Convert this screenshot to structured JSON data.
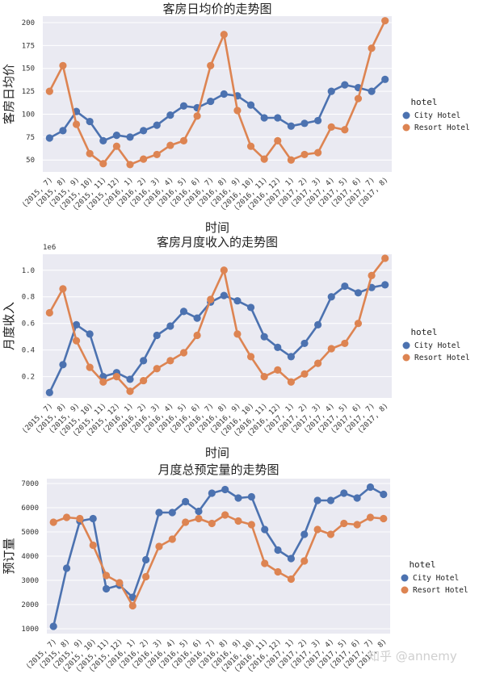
{
  "watermark": "知乎 @annemy",
  "chart_data": [
    {
      "type": "line",
      "title": "客房日均价的走势图",
      "xlabel": "时间",
      "ylabel": "客房日均价",
      "multiplier": "",
      "legend_title": "hotel",
      "legend_position": "right",
      "grid": true,
      "ylim": [
        37,
        207
      ],
      "yticks": [
        50,
        75,
        100,
        125,
        150,
        175,
        200
      ],
      "categories": [
        "(2015, 7)",
        "(2015, 8)",
        "(2015, 9)",
        "(2015, 10)",
        "(2015, 11)",
        "(2015, 12)",
        "(2016, 1)",
        "(2016, 2)",
        "(2016, 3)",
        "(2016, 4)",
        "(2016, 5)",
        "(2016, 6)",
        "(2016, 7)",
        "(2016, 8)",
        "(2016, 9)",
        "(2016, 10)",
        "(2016, 11)",
        "(2016, 12)",
        "(2017, 1)",
        "(2017, 2)",
        "(2017, 3)",
        "(2017, 4)",
        "(2017, 5)",
        "(2017, 6)",
        "(2017, 7)",
        "(2017, 8)"
      ],
      "series": [
        {
          "name": "City Hotel",
          "color": "#4c72b0",
          "values": [
            74,
            82,
            103,
            92,
            71,
            77,
            75,
            82,
            88,
            99,
            109,
            107,
            114,
            122,
            120,
            110,
            96,
            96,
            87,
            90,
            93,
            125,
            132,
            129,
            125,
            138
          ]
        },
        {
          "name": "Resort Hotel",
          "color": "#dd8452",
          "values": [
            125,
            153,
            89,
            57,
            46,
            65,
            45,
            51,
            56,
            66,
            71,
            98,
            153,
            187,
            104,
            65,
            51,
            71,
            50,
            56,
            58,
            86,
            83,
            117,
            172,
            202
          ]
        }
      ]
    },
    {
      "type": "line",
      "title": "客房月度收入的走势图",
      "xlabel": "时间",
      "ylabel": "月度收入",
      "multiplier": "1e6",
      "legend_title": "hotel",
      "legend_position": "right",
      "grid": true,
      "ylim": [
        0.04,
        1.12
      ],
      "yticks": [
        0.2,
        0.4,
        0.6,
        0.8,
        1.0
      ],
      "categories": [
        "(2015, 7)",
        "(2015, 8)",
        "(2015, 9)",
        "(2015, 10)",
        "(2015, 11)",
        "(2015, 12)",
        "(2016, 1)",
        "(2016, 2)",
        "(2016, 3)",
        "(2016, 4)",
        "(2016, 5)",
        "(2016, 6)",
        "(2016, 7)",
        "(2016, 8)",
        "(2016, 9)",
        "(2016, 10)",
        "(2016, 11)",
        "(2016, 12)",
        "(2017, 1)",
        "(2017, 2)",
        "(2017, 3)",
        "(2017, 4)",
        "(2017, 5)",
        "(2017, 6)",
        "(2017, 7)",
        "(2017, 8)"
      ],
      "series": [
        {
          "name": "City Hotel",
          "color": "#4c72b0",
          "values": [
            0.08,
            0.29,
            0.59,
            0.52,
            0.2,
            0.23,
            0.18,
            0.32,
            0.51,
            0.58,
            0.69,
            0.64,
            0.76,
            0.81,
            0.77,
            0.72,
            0.5,
            0.42,
            0.35,
            0.45,
            0.59,
            0.8,
            0.88,
            0.83,
            0.87,
            0.89
          ]
        },
        {
          "name": "Resort Hotel",
          "color": "#dd8452",
          "values": [
            0.68,
            0.86,
            0.47,
            0.27,
            0.16,
            0.2,
            0.09,
            0.17,
            0.26,
            0.32,
            0.38,
            0.51,
            0.78,
            1.0,
            0.52,
            0.35,
            0.2,
            0.25,
            0.16,
            0.22,
            0.3,
            0.41,
            0.45,
            0.6,
            0.96,
            1.09
          ]
        }
      ]
    },
    {
      "type": "line",
      "title": "月度总预定量的走势图",
      "xlabel": "",
      "ylabel": "预订量",
      "multiplier": "",
      "legend_title": "hotel",
      "legend_position": "right",
      "grid": true,
      "ylim": [
        800,
        7200
      ],
      "yticks": [
        1000,
        2000,
        3000,
        4000,
        5000,
        6000,
        7000
      ],
      "categories": [
        "(2015, 7)",
        "(2015, 8)",
        "(2015, 9)",
        "(2015, 10)",
        "(2015, 11)",
        "(2015, 12)",
        "(2016, 1)",
        "(2016, 2)",
        "(2016, 3)",
        "(2016, 4)",
        "(2016, 5)",
        "(2016, 6)",
        "(2016, 7)",
        "(2016, 8)",
        "(2016, 9)",
        "(2016, 10)",
        "(2016, 11)",
        "(2016, 12)",
        "(2017, 1)",
        "(2017, 2)",
        "(2017, 3)",
        "(2017, 4)",
        "(2017, 5)",
        "(2017, 6)",
        "(2017, 7)",
        "(2017, 8)"
      ],
      "series": [
        {
          "name": "City Hotel",
          "color": "#4c72b0",
          "values": [
            1100,
            3500,
            5450,
            5550,
            2650,
            2800,
            2300,
            3850,
            5800,
            5800,
            6250,
            5850,
            6600,
            6750,
            6400,
            6450,
            5100,
            4250,
            3900,
            4900,
            6300,
            6300,
            6600,
            6400,
            6850,
            6550
          ]
        },
        {
          "name": "Resort Hotel",
          "color": "#dd8452",
          "values": [
            5400,
            5600,
            5550,
            4450,
            3200,
            2900,
            1950,
            3150,
            4400,
            4700,
            5400,
            5550,
            5350,
            5700,
            5450,
            5300,
            3700,
            3350,
            3050,
            3800,
            5100,
            4900,
            5350,
            5300,
            5600,
            5550
          ]
        }
      ]
    }
  ]
}
